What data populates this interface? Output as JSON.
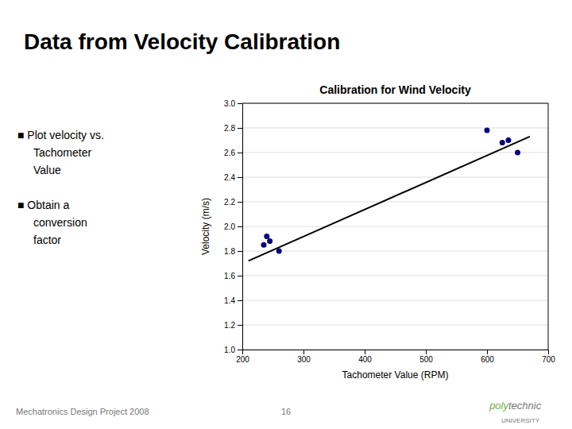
{
  "chart_data": {
    "type": "scatter",
    "title": "Calibration for Wind Velocity",
    "xlabel": "Tachometer Value (RPM)",
    "ylabel": "Velocity (m/s)",
    "annotations": [
      "Data from Velocity Calibration",
      "■ Plot velocity vs.",
      "Tachometer",
      "Value",
      "■ Obtain a",
      "conversion",
      "factor",
      "Mechatronics Design Project 2008",
      "16",
      "poly",
      "technic",
      "UNIVERSITY"
    ],
    "series": [
      {
        "type": "scatter",
        "color": "#000080",
        "x": [
          235,
          240,
          245,
          260,
          600,
          625,
          635,
          650
        ],
        "values": [
          1.85,
          1.92,
          1.88,
          1.8,
          2.78,
          2.68,
          2.7,
          2.6
        ]
      },
      {
        "type": "line",
        "color": "#000000",
        "x": [
          210,
          670
        ],
        "values": [
          1.72,
          2.73
        ]
      }
    ],
    "xlim": [
      200,
      700
    ],
    "ylim": [
      1.0,
      3.0
    ],
    "xticks": [
      200,
      300,
      400,
      500,
      600,
      700
    ],
    "yticks": [
      {
        "value": 1.0,
        "label": "1.0"
      },
      1.2,
      1.4,
      1.6,
      1.8,
      {
        "value": 2.0,
        "label": "2.0"
      },
      2.2,
      2.4,
      2.6,
      2.8,
      {
        "value": 3.0,
        "label": "3.0"
      }
    ],
    "grid": "y"
  }
}
